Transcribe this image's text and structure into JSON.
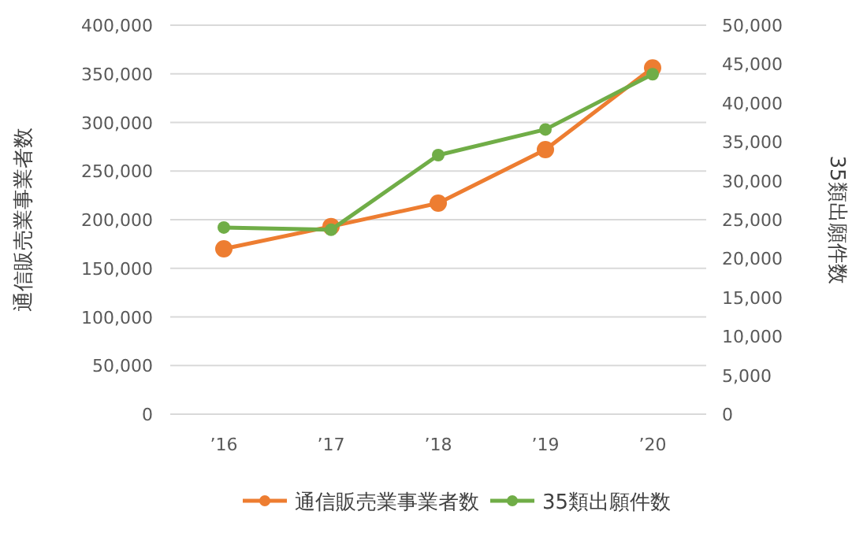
{
  "chart_data": {
    "type": "line",
    "xlabel": null,
    "ylabel": "通信販売業事業者数",
    "y2label": "35類出願件数",
    "categories": [
      "’16",
      "’17",
      "’18",
      "’19",
      "’20"
    ],
    "series": [
      {
        "name": "通信販売業事業者数",
        "color": "#ed7d31",
        "values": [
          170000,
          193000,
          217000,
          272000,
          356000
        ]
      },
      {
        "name": "35類出願件数",
        "color": "#70ad47",
        "axis": "y2",
        "values": [
          24000,
          23700,
          33300,
          36600,
          43700
        ]
      }
    ],
    "ylim": [
      0,
      400000
    ],
    "yticks": [
      {
        "value": 0,
        "label": "0"
      },
      {
        "value": 50000,
        "label": "50,000"
      },
      {
        "value": 100000,
        "label": "100,000"
      },
      {
        "value": 150000,
        "label": "150,000"
      },
      {
        "value": 200000,
        "label": "200,000"
      },
      {
        "value": 250000,
        "label": "250,000"
      },
      {
        "value": 300000,
        "label": "300,000"
      },
      {
        "value": 350000,
        "label": "350,000"
      },
      {
        "value": 400000,
        "label": "400,000"
      }
    ],
    "y2lim": [
      0,
      50000
    ],
    "y2ticks": [
      {
        "value": 0,
        "label": "0"
      },
      {
        "value": 5000,
        "label": "5,000"
      },
      {
        "value": 10000,
        "label": "10,000"
      },
      {
        "value": 15000,
        "label": "15,000"
      },
      {
        "value": 20000,
        "label": "20,000"
      },
      {
        "value": 25000,
        "label": "25,000"
      },
      {
        "value": 30000,
        "label": "30,000"
      },
      {
        "value": 35000,
        "label": "35,000"
      },
      {
        "value": 40000,
        "label": "40,000"
      },
      {
        "value": 45000,
        "label": "45,000"
      },
      {
        "value": 50000,
        "label": "50,000"
      }
    ],
    "grid": "y",
    "legend": "bottom",
    "marker": "circle",
    "line_style": "solid"
  }
}
